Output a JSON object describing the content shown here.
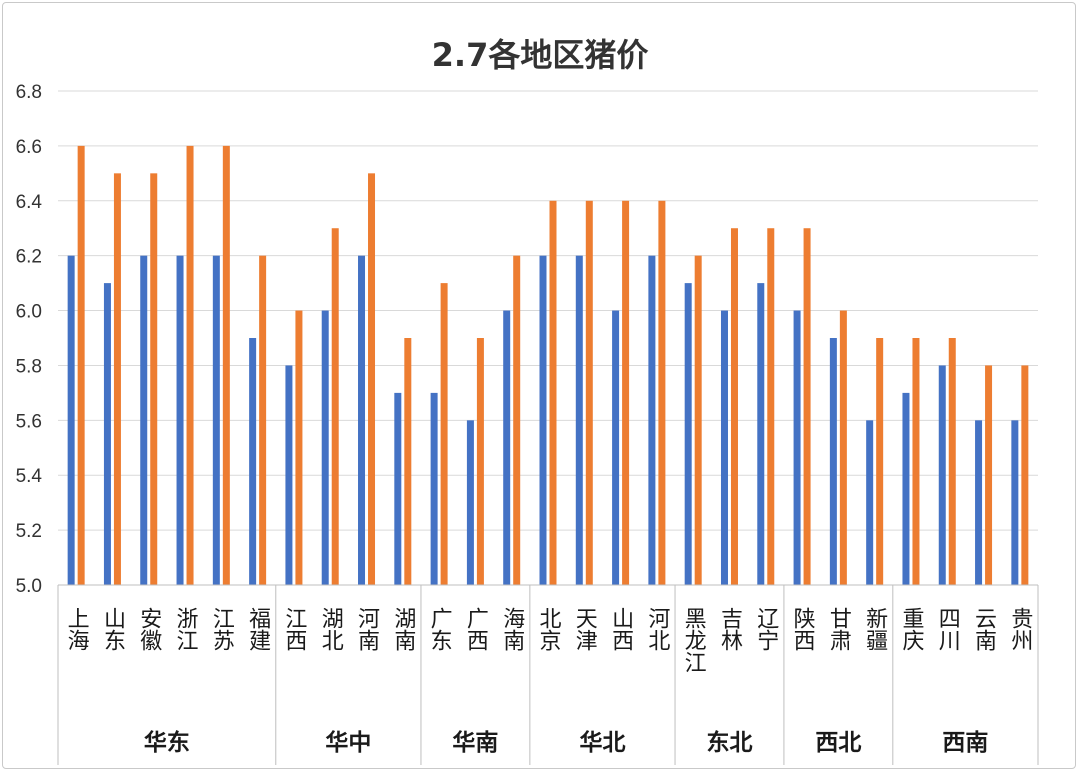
{
  "chart_data": {
    "type": "bar",
    "title": "2.7各地区猪价",
    "xlabel": "",
    "ylabel": "",
    "ylim": [
      5.0,
      6.8
    ],
    "yticks": [
      "5.0",
      "5.2",
      "5.4",
      "5.6",
      "5.8",
      "6.0",
      "6.2",
      "6.4",
      "6.6",
      "6.8"
    ],
    "grid": true,
    "legend": "none",
    "categories": [
      "上海",
      "山东",
      "安徽",
      "浙江",
      "江苏",
      "福建",
      "江西",
      "湖北",
      "河南",
      "湖南",
      "广东",
      "广西",
      "海南",
      "北京",
      "天津",
      "山西",
      "河北",
      "黑龙江",
      "吉林",
      "辽宁",
      "陕西",
      "甘肃",
      "新疆",
      "重庆",
      "四川",
      "云南",
      "贵州"
    ],
    "groups": [
      {
        "name": "华东",
        "count": 6
      },
      {
        "name": "华中",
        "count": 4
      },
      {
        "name": "华南",
        "count": 3
      },
      {
        "name": "华北",
        "count": 4
      },
      {
        "name": "东北",
        "count": 3
      },
      {
        "name": "西北",
        "count": 3
      },
      {
        "name": "西南",
        "count": 4
      }
    ],
    "series": [
      {
        "color": "#4472C4",
        "values": [
          6.2,
          6.1,
          6.2,
          6.2,
          6.2,
          5.9,
          5.8,
          6.0,
          6.2,
          5.7,
          5.7,
          5.6,
          6.0,
          6.2,
          6.2,
          6.0,
          6.2,
          6.1,
          6.0,
          6.1,
          6.0,
          5.9,
          5.6,
          5.7,
          5.8,
          5.6,
          5.6
        ]
      },
      {
        "color": "#ED7D31",
        "values": [
          6.6,
          6.5,
          6.5,
          6.6,
          6.6,
          6.2,
          6.0,
          6.3,
          6.5,
          5.9,
          6.1,
          5.9,
          6.2,
          6.4,
          6.4,
          6.4,
          6.4,
          6.2,
          6.3,
          6.3,
          6.3,
          6.0,
          5.9,
          5.9,
          5.9,
          5.8,
          5.8
        ]
      }
    ]
  }
}
